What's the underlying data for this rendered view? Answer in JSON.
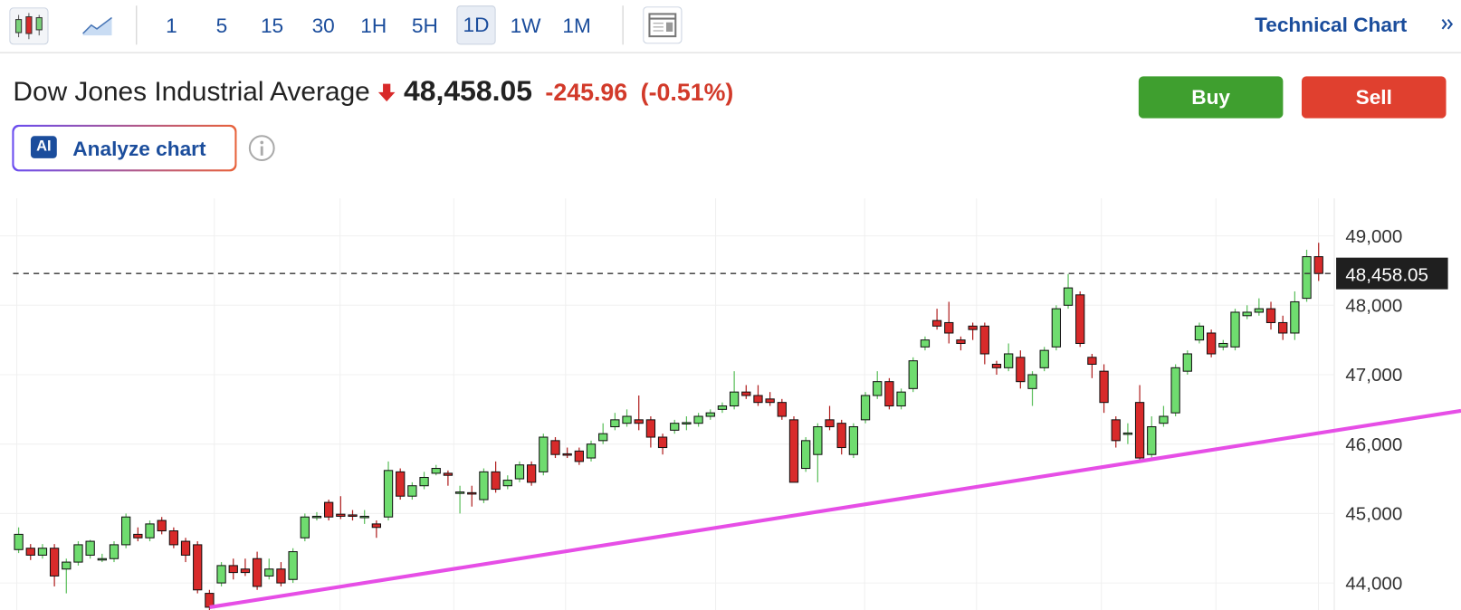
{
  "toolbar": {
    "intervals": [
      "1",
      "5",
      "15",
      "30",
      "1H",
      "5H",
      "1D",
      "1W",
      "1M"
    ],
    "active": "1D",
    "technical_chart": "Technical Chart"
  },
  "header": {
    "instrument": "Dow Jones Industrial Average",
    "price": "48,458.05",
    "change": "-245.96",
    "change_percent": "(-0.51%)",
    "buy": "Buy",
    "sell": "Sell",
    "ai_badge": "AI",
    "analyze": "Analyze chart"
  },
  "chart_data": {
    "type": "candlestick",
    "up_color": "#6fdc6f",
    "down_color": "#d82a2a",
    "grid": true,
    "ylim": [
      43610,
      49540
    ],
    "yticks": [
      {
        "value": 44000,
        "label": "44,000"
      },
      {
        "value": 45000,
        "label": "45,000"
      },
      {
        "value": 46000,
        "label": "46,000"
      },
      {
        "value": 47000,
        "label": "47,000"
      },
      {
        "value": 48000,
        "label": "48,000"
      },
      {
        "value": 49000,
        "label": "49,000"
      }
    ],
    "last_price": {
      "value": 48458.05,
      "label": "48,458.05"
    },
    "trend_line": {
      "color": "#e64ee6",
      "start": 43650,
      "end": 46480
    },
    "open": [
      44480,
      44500,
      44400,
      44500,
      44200,
      44300,
      44400,
      44350,
      44350,
      44550,
      44700,
      44650,
      44900,
      44750,
      44600,
      44550,
      43850,
      44000,
      44250,
      44200,
      44350,
      44100,
      44200,
      44050,
      44650,
      44950,
      45160,
      44990,
      44980,
      44950,
      44850,
      44950,
      45600,
      45250,
      45400,
      45580,
      45580,
      45300,
      45300,
      45200,
      45600,
      45400,
      45500,
      45700,
      45600,
      46050,
      45860,
      45900,
      45800,
      46050,
      46250,
      46300,
      46350,
      46350,
      46100,
      46200,
      46300,
      46300,
      46400,
      46500,
      46550,
      46750,
      46700,
      46650,
      46600,
      46350,
      45650,
      45850,
      46350,
      46300,
      45850,
      46350,
      46700,
      46900,
      46550,
      46800,
      47400,
      47780,
      47750,
      47500,
      47700,
      47700,
      47150,
      47100,
      47250,
      46800,
      47100,
      47400,
      48000,
      48150,
      47250,
      47050,
      46350,
      46150,
      46600,
      45850,
      46300,
      46450,
      47050,
      47500,
      47600,
      47400,
      47400,
      47850,
      47900,
      47950,
      47750,
      47600,
      48100,
      48700
    ],
    "high": [
      44800,
      44560,
      44560,
      44560,
      44350,
      44600,
      44620,
      44420,
      44600,
      45000,
      44800,
      44900,
      44950,
      44800,
      44650,
      44600,
      43900,
      44300,
      44350,
      44350,
      44450,
      44350,
      44300,
      44500,
      45000,
      45020,
      45200,
      45250,
      45050,
      45050,
      44900,
      45750,
      45650,
      45450,
      45600,
      45700,
      45620,
      45400,
      45400,
      45650,
      45750,
      45550,
      45750,
      45750,
      46150,
      46100,
      45950,
      45950,
      46050,
      46300,
      46450,
      46500,
      46700,
      46400,
      46150,
      46350,
      46400,
      46450,
      46500,
      46600,
      47050,
      46850,
      46850,
      46750,
      46650,
      46400,
      46100,
      46300,
      46550,
      46350,
      46300,
      46750,
      47050,
      46950,
      46800,
      47250,
      47550,
      47950,
      48050,
      47550,
      47750,
      47750,
      47200,
      47450,
      47350,
      47050,
      47400,
      48000,
      48450,
      48200,
      47300,
      47150,
      46400,
      46300,
      46850,
      46400,
      46550,
      47150,
      47350,
      47750,
      47650,
      47500,
      47950,
      48000,
      48100,
      48050,
      47850,
      48200,
      48800,
      48900
    ],
    "low": [
      44430,
      44330,
      44350,
      43950,
      43850,
      44250,
      44350,
      44300,
      44300,
      44500,
      44600,
      44600,
      44700,
      44500,
      44300,
      43850,
      43600,
      43950,
      44050,
      44100,
      43900,
      44050,
      43950,
      44000,
      44600,
      44900,
      44900,
      44920,
      44900,
      44850,
      44650,
      44900,
      45200,
      45200,
      45350,
      45550,
      45400,
      45000,
      45100,
      45150,
      45300,
      45350,
      45450,
      45400,
      45550,
      45800,
      45800,
      45700,
      45750,
      46000,
      46200,
      46250,
      46200,
      45950,
      45850,
      46150,
      46200,
      46250,
      46350,
      46450,
      46500,
      46650,
      46550,
      46550,
      46350,
      45450,
      45600,
      45450,
      46200,
      45850,
      45800,
      46300,
      46650,
      46500,
      46500,
      46750,
      47350,
      47650,
      47450,
      47350,
      47500,
      47150,
      47000,
      47050,
      46800,
      46550,
      47050,
      47350,
      47950,
      47400,
      46950,
      46450,
      45950,
      46000,
      45750,
      45800,
      46250,
      46400,
      47000,
      47450,
      47250,
      47350,
      47350,
      47800,
      47850,
      47650,
      47500,
      47500,
      48050,
      48350
    ],
    "close": [
      44700,
      44400,
      44500,
      44100,
      44300,
      44550,
      44600,
      44350,
      44550,
      44950,
      44650,
      44850,
      44750,
      44550,
      44400,
      43900,
      43650,
      44250,
      44150,
      44150,
      43950,
      44200,
      44000,
      44450,
      44950,
      44960,
      44950,
      44960,
      44960,
      44960,
      44800,
      45620,
      45250,
      45400,
      45520,
      45650,
      45550,
      45310,
      45280,
      45600,
      45350,
      45480,
      45700,
      45450,
      46100,
      45850,
      45850,
      45750,
      46000,
      46150,
      46350,
      46400,
      46300,
      46100,
      45950,
      46300,
      46310,
      46400,
      46450,
      46550,
      46750,
      46700,
      46600,
      46600,
      46400,
      45450,
      46050,
      46250,
      46250,
      45950,
      46250,
      46700,
      46900,
      46550,
      46750,
      47200,
      47500,
      47700,
      47600,
      47450,
      47650,
      47300,
      47100,
      47300,
      46900,
      47000,
      47350,
      47950,
      48250,
      47450,
      47150,
      46600,
      46050,
      46160,
      45800,
      46250,
      46400,
      47100,
      47300,
      47700,
      47300,
      47450,
      47900,
      47900,
      47950,
      47750,
      47600,
      48050,
      48700,
      48458.05
    ]
  }
}
